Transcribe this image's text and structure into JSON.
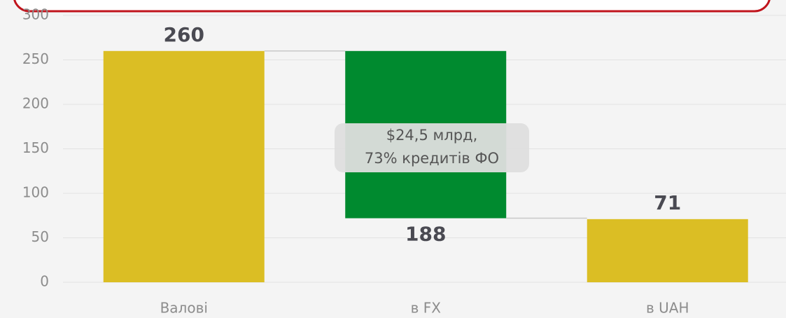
{
  "chart_data": {
    "type": "waterfall",
    "categories": [
      "Валові",
      "в FX",
      "в UAH"
    ],
    "series": [
      {
        "values": [
          260,
          188,
          71
        ],
        "measures": [
          "total",
          "decrease",
          "total"
        ],
        "colors": [
          "#dbbe24",
          "#008a2f",
          "#dbbe24"
        ]
      }
    ],
    "annotation": [
      "$24,5 млрд,",
      "73% кредитів ФО"
    ],
    "ylim": [
      0,
      300
    ],
    "yticks": [
      0,
      50,
      100,
      150,
      200,
      250,
      300
    ],
    "grid": true
  }
}
